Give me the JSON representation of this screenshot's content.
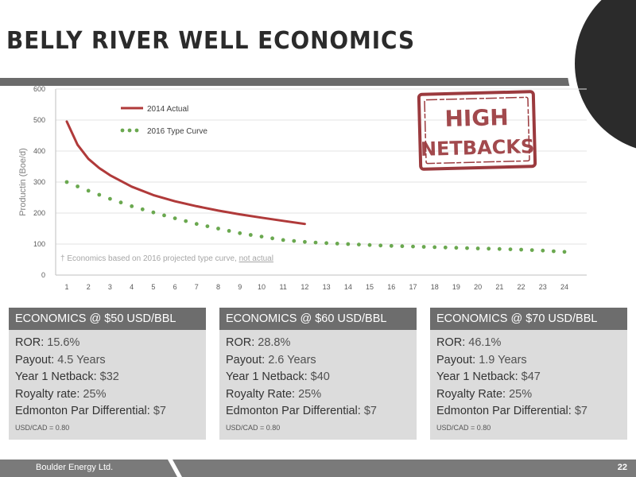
{
  "slide": {
    "title": "BELLY RIVER WELL ECONOMICS",
    "page_number": "22",
    "company": "Boulder Energy Ltd."
  },
  "stamp": {
    "line1": "HIGH",
    "line2": "NETBACKS",
    "color": "#9b3a3e"
  },
  "colors": {
    "actual": "#b03a3a",
    "type_curve": "#6aa84f",
    "header_bg": "#6d6d6d",
    "body_bg": "#dcdcdc"
  },
  "chart_data": {
    "type": "line",
    "ylabel": "Productin (Boe/d)",
    "xlabel": "",
    "ylim": [
      0,
      600
    ],
    "yticks": [
      0,
      100,
      200,
      300,
      400,
      500,
      600
    ],
    "xlim": [
      1,
      24
    ],
    "categories": [
      "1",
      "2",
      "3",
      "4",
      "5",
      "6",
      "7",
      "8",
      "9",
      "10",
      "11",
      "12",
      "13",
      "14",
      "15",
      "16",
      "17",
      "18",
      "19",
      "20",
      "21",
      "22",
      "23",
      "24"
    ],
    "legend_position": "top-left",
    "grid": "horizontal",
    "series": [
      {
        "name": "2014 Actual",
        "style": "solid",
        "x": [
          1,
          1.5,
          2,
          2.5,
          3,
          4,
          5,
          6,
          7,
          8,
          9,
          10,
          11,
          12
        ],
        "y": [
          495,
          420,
          375,
          345,
          322,
          285,
          258,
          238,
          222,
          208,
          196,
          185,
          175,
          165
        ]
      },
      {
        "name": "2016 Type Curve",
        "style": "dotted",
        "x": [
          1,
          2,
          3,
          4,
          5,
          6,
          7,
          8,
          9,
          10,
          11,
          12,
          13,
          14,
          15,
          16,
          17,
          18,
          19,
          20,
          21,
          22,
          23,
          24
        ],
        "y": [
          300,
          272,
          246,
          222,
          202,
          183,
          165,
          150,
          135,
          124,
          113,
          107,
          103,
          100,
          97,
          94,
          92,
          90,
          88,
          86,
          84,
          82,
          79,
          75
        ]
      }
    ],
    "annotation": {
      "prefix": "† Economics based on 2016 projected type curve, ",
      "underlined": "not actual"
    }
  },
  "boxes": [
    {
      "header": "ECONOMICS @ $50 USD/BBL",
      "ror_label": "ROR:",
      "ror_value": " 15.6%",
      "payout_label": "Payout:",
      "payout_value": " 4.5 Years",
      "netback_label": "Year 1 Netback:",
      "netback_value": " $32",
      "royalty_label": "Royalty rate:",
      "royalty_value": " 25%",
      "diff_label": "Edmonton Par Differential:",
      "diff_value": " $7",
      "fx": "USD/CAD = 0.80"
    },
    {
      "header": "ECONOMICS @ $60 USD/BBL",
      "ror_label": "ROR:",
      "ror_value": " 28.8%",
      "payout_label": "Payout:",
      "payout_value": " 2.6 Years",
      "netback_label": "Year 1 Netback:",
      "netback_value": " $40",
      "royalty_label": "Royalty Rate:",
      "royalty_value": " 25%",
      "diff_label": "Edmonton Par Differential:",
      "diff_value": " $7",
      "fx": "USD/CAD = 0.80"
    },
    {
      "header": "ECONOMICS @ $70 USD/BBL",
      "ror_label": "ROR:",
      "ror_value": " 46.1%",
      "payout_label": "Payout:",
      "payout_value": " 1.9 Years",
      "netback_label": "Year 1 Netback:",
      "netback_value": " $47",
      "royalty_label": "Royalty Rate:",
      "royalty_value": " 25%",
      "diff_label": "Edmonton Par Differential:",
      "diff_value": " $7",
      "fx": "USD/CAD = 0.80"
    }
  ]
}
